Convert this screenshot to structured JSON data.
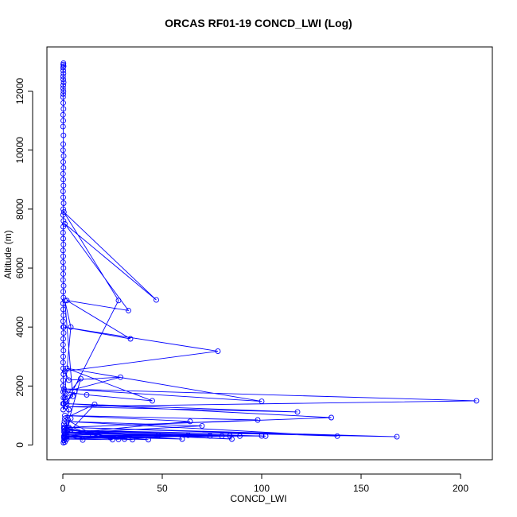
{
  "chart_data": {
    "type": "line",
    "title": "ORCAS RF01-19 CONCD_LWI (Log)",
    "xlabel": "CONCD_LWI",
    "ylabel": "Altitude (m)",
    "xlim": [
      -8,
      216
    ],
    "ylim": [
      -500,
      13500
    ],
    "xticks": [
      0,
      50,
      100,
      150,
      200
    ],
    "yticks": [
      0,
      2000,
      4000,
      6000,
      8000,
      10000,
      12000
    ],
    "grid": false,
    "series_color": "#0000ff",
    "marker": "open-circle",
    "series": [
      {
        "x": [
          0.3,
          0.2,
          0.4,
          0.1,
          0.2,
          0.3,
          0.1,
          0.2,
          0.4,
          0.2,
          0.1,
          0.3,
          0.2,
          0.1,
          0.2,
          0.3,
          0.1,
          0.2,
          0.1,
          0.3,
          0.2,
          0.1,
          0.4,
          0.2,
          0.3,
          0.1,
          0.2,
          0.3,
          0.1,
          0.2,
          0.4,
          0.2,
          0.1,
          0.3,
          0.2,
          0.1,
          0.2,
          0.3,
          0.1,
          0.2,
          0.1,
          0.3,
          0.2,
          0.1,
          0.4,
          0.2,
          0.3,
          0.1,
          0.2,
          0.3,
          0.1,
          0.2,
          0.4,
          0.2,
          0.1,
          0.3,
          0.2,
          0.1,
          0.2,
          0.3,
          0.2,
          0.1,
          0.2,
          0.3,
          0.1,
          0.2,
          28,
          0.5,
          47,
          1,
          33,
          2,
          34,
          0.5,
          78,
          1,
          3,
          29,
          1,
          12,
          45,
          2,
          100,
          0.6,
          208,
          1.5,
          118,
          2,
          135,
          3,
          98,
          1,
          64,
          2,
          70,
          0.8,
          138,
          1,
          168,
          2,
          102,
          1,
          100,
          0.5,
          89,
          1,
          84,
          2,
          85,
          0.5,
          80,
          1,
          74,
          2,
          63,
          1,
          60,
          0.5,
          48,
          1,
          43,
          2,
          35,
          0.5,
          31,
          1,
          28,
          0.5,
          25,
          1,
          24,
          2,
          10,
          0.5,
          15,
          1,
          16,
          0.5,
          9,
          1,
          6,
          2,
          5,
          1,
          4,
          0.5,
          3,
          1,
          4,
          1,
          2,
          0.5,
          1,
          0.3
        ],
        "y": [
          12950,
          12900,
          12850,
          12800,
          12700,
          12600,
          12500,
          12400,
          12300,
          12200,
          12100,
          12000,
          11900,
          11800,
          11600,
          11400,
          11200,
          11000,
          10800,
          10500,
          10200,
          10000,
          9800,
          9600,
          9400,
          9200,
          9000,
          8800,
          8600,
          8400,
          8200,
          8000,
          7800,
          7600,
          7400,
          7200,
          7000,
          6800,
          6600,
          6400,
          6200,
          6000,
          5800,
          5600,
          5400,
          5200,
          5000,
          4800,
          4600,
          4400,
          4200,
          4000,
          3800,
          3600,
          3400,
          3200,
          3000,
          2800,
          2600,
          2400,
          2200,
          2000,
          1800,
          1600,
          1400,
          1200,
          4900,
          7900,
          4920,
          7500,
          4560,
          4900,
          3600,
          4000,
          3180,
          2500,
          2200,
          2300,
          1800,
          1700,
          1500,
          2600,
          1480,
          1900,
          1500,
          1300,
          1120,
          1400,
          930,
          600,
          850,
          1000,
          800,
          400,
          650,
          800,
          300,
          600,
          280,
          500,
          300,
          350,
          310,
          280,
          300,
          250,
          310,
          500,
          200,
          450,
          300,
          250,
          310,
          200,
          330,
          400,
          200,
          300,
          320,
          450,
          180,
          280,
          180,
          550,
          200,
          350,
          190,
          600,
          180,
          200,
          250,
          300,
          170,
          700,
          350,
          900,
          1380,
          250,
          2250,
          1600,
          1800,
          1500,
          1650,
          4900,
          4000,
          1400,
          1200,
          350,
          900,
          500,
          600,
          150,
          100,
          80
        ]
      }
    ]
  }
}
